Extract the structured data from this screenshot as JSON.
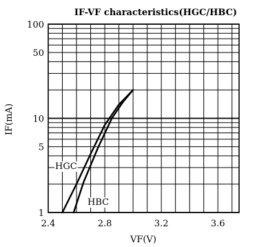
{
  "chart_data": {
    "type": "line",
    "title": "IF-VF characteristics(HGC/HBC)",
    "xlabel": "VF(V)",
    "ylabel": "IF(mA)",
    "xlim": [
      2.4,
      3.75
    ],
    "ylim": [
      1,
      100
    ],
    "yscale": "log",
    "grid": true,
    "x_ticks": [
      2.4,
      2.8,
      3.2,
      3.6
    ],
    "x_tick_labels": [
      "2.4",
      "2.8",
      "3.2",
      "3.6"
    ],
    "y_ticks": [
      1,
      5,
      10,
      50,
      100
    ],
    "y_tick_labels": [
      "1",
      "5",
      "10",
      "50",
      "100"
    ],
    "series": [
      {
        "name": "HGC",
        "x": [
          2.5,
          2.6,
          2.7,
          2.8,
          2.9,
          3.0
        ],
        "y": [
          1.0,
          2.0,
          4.2,
          8.5,
          14.0,
          20.0
        ]
      },
      {
        "name": "HBC",
        "x": [
          2.58,
          2.65,
          2.75,
          2.85,
          2.93,
          3.0
        ],
        "y": [
          1.0,
          2.1,
          4.8,
          10.0,
          15.0,
          20.0
        ]
      }
    ],
    "colors": {
      "line": "#000000",
      "grid": "#000000"
    }
  }
}
